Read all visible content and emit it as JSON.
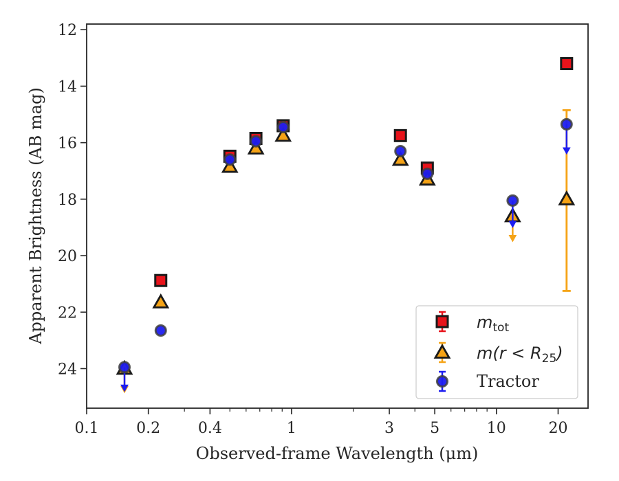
{
  "chart_data": {
    "type": "scatter",
    "xlabel": "Observed-frame Wavelength (μm)",
    "ylabel": "Apparent Brightness (AB mag)",
    "xscale": "log",
    "xlim": [
      0.1,
      28
    ],
    "ylim": [
      25.4,
      11.8
    ],
    "y_inverted": true,
    "xticks": [
      0.1,
      0.2,
      0.4,
      1,
      3,
      5,
      10,
      20
    ],
    "xtick_labels": [
      "0.1",
      "0.2",
      "0.4",
      "1",
      "3",
      "5",
      "10",
      "20"
    ],
    "yticks": [
      12,
      14,
      16,
      18,
      20,
      22,
      24
    ],
    "ytick_labels": [
      "12",
      "14",
      "16",
      "18",
      "20",
      "22",
      "24"
    ],
    "grid": false,
    "legend_position": "lower-right",
    "series": [
      {
        "name": "m_tot",
        "legend_main": "m",
        "legend_sub": "tot",
        "color": "#e8131b",
        "edge": "#1a1a1a",
        "marker": "square",
        "points": [
          {
            "x": 0.23,
            "y": 20.88
          },
          {
            "x": 0.5,
            "y": 16.48
          },
          {
            "x": 0.67,
            "y": 15.85
          },
          {
            "x": 0.91,
            "y": 15.4
          },
          {
            "x": 3.4,
            "y": 15.75
          },
          {
            "x": 4.6,
            "y": 16.9
          },
          {
            "x": 22,
            "y": 13.2
          }
        ]
      },
      {
        "name": "m(r < R_25)",
        "legend_main": "m(r < R",
        "legend_sub": "25",
        "legend_tail": ")",
        "color": "#f5a316",
        "edge": "#1a1a1a",
        "marker": "triangle",
        "points": [
          {
            "x": 0.153,
            "y": 24.0,
            "upper_limit_to": 24.8
          },
          {
            "x": 0.23,
            "y": 21.65
          },
          {
            "x": 0.5,
            "y": 16.85
          },
          {
            "x": 0.67,
            "y": 16.2
          },
          {
            "x": 0.91,
            "y": 15.75
          },
          {
            "x": 3.4,
            "y": 16.6
          },
          {
            "x": 4.6,
            "y": 17.3
          },
          {
            "x": 12,
            "y": 18.6,
            "upper_limit_to": 19.45
          },
          {
            "x": 22,
            "y": 18.0,
            "err_low": 14.85,
            "err_high": 21.25
          }
        ]
      },
      {
        "name": "Tractor",
        "color": "#1d1df0",
        "edge": "#404040",
        "marker": "circle",
        "points": [
          {
            "x": 0.153,
            "y": 23.95,
            "upper_limit_to": 24.75
          },
          {
            "x": 0.23,
            "y": 22.65
          },
          {
            "x": 0.5,
            "y": 16.6
          },
          {
            "x": 0.67,
            "y": 15.95
          },
          {
            "x": 0.91,
            "y": 15.45
          },
          {
            "x": 3.4,
            "y": 16.3
          },
          {
            "x": 4.6,
            "y": 17.1
          },
          {
            "x": 12,
            "y": 18.05,
            "upper_limit_to": 18.95
          },
          {
            "x": 22,
            "y": 15.35,
            "upper_limit_to": 16.35
          }
        ]
      }
    ]
  }
}
